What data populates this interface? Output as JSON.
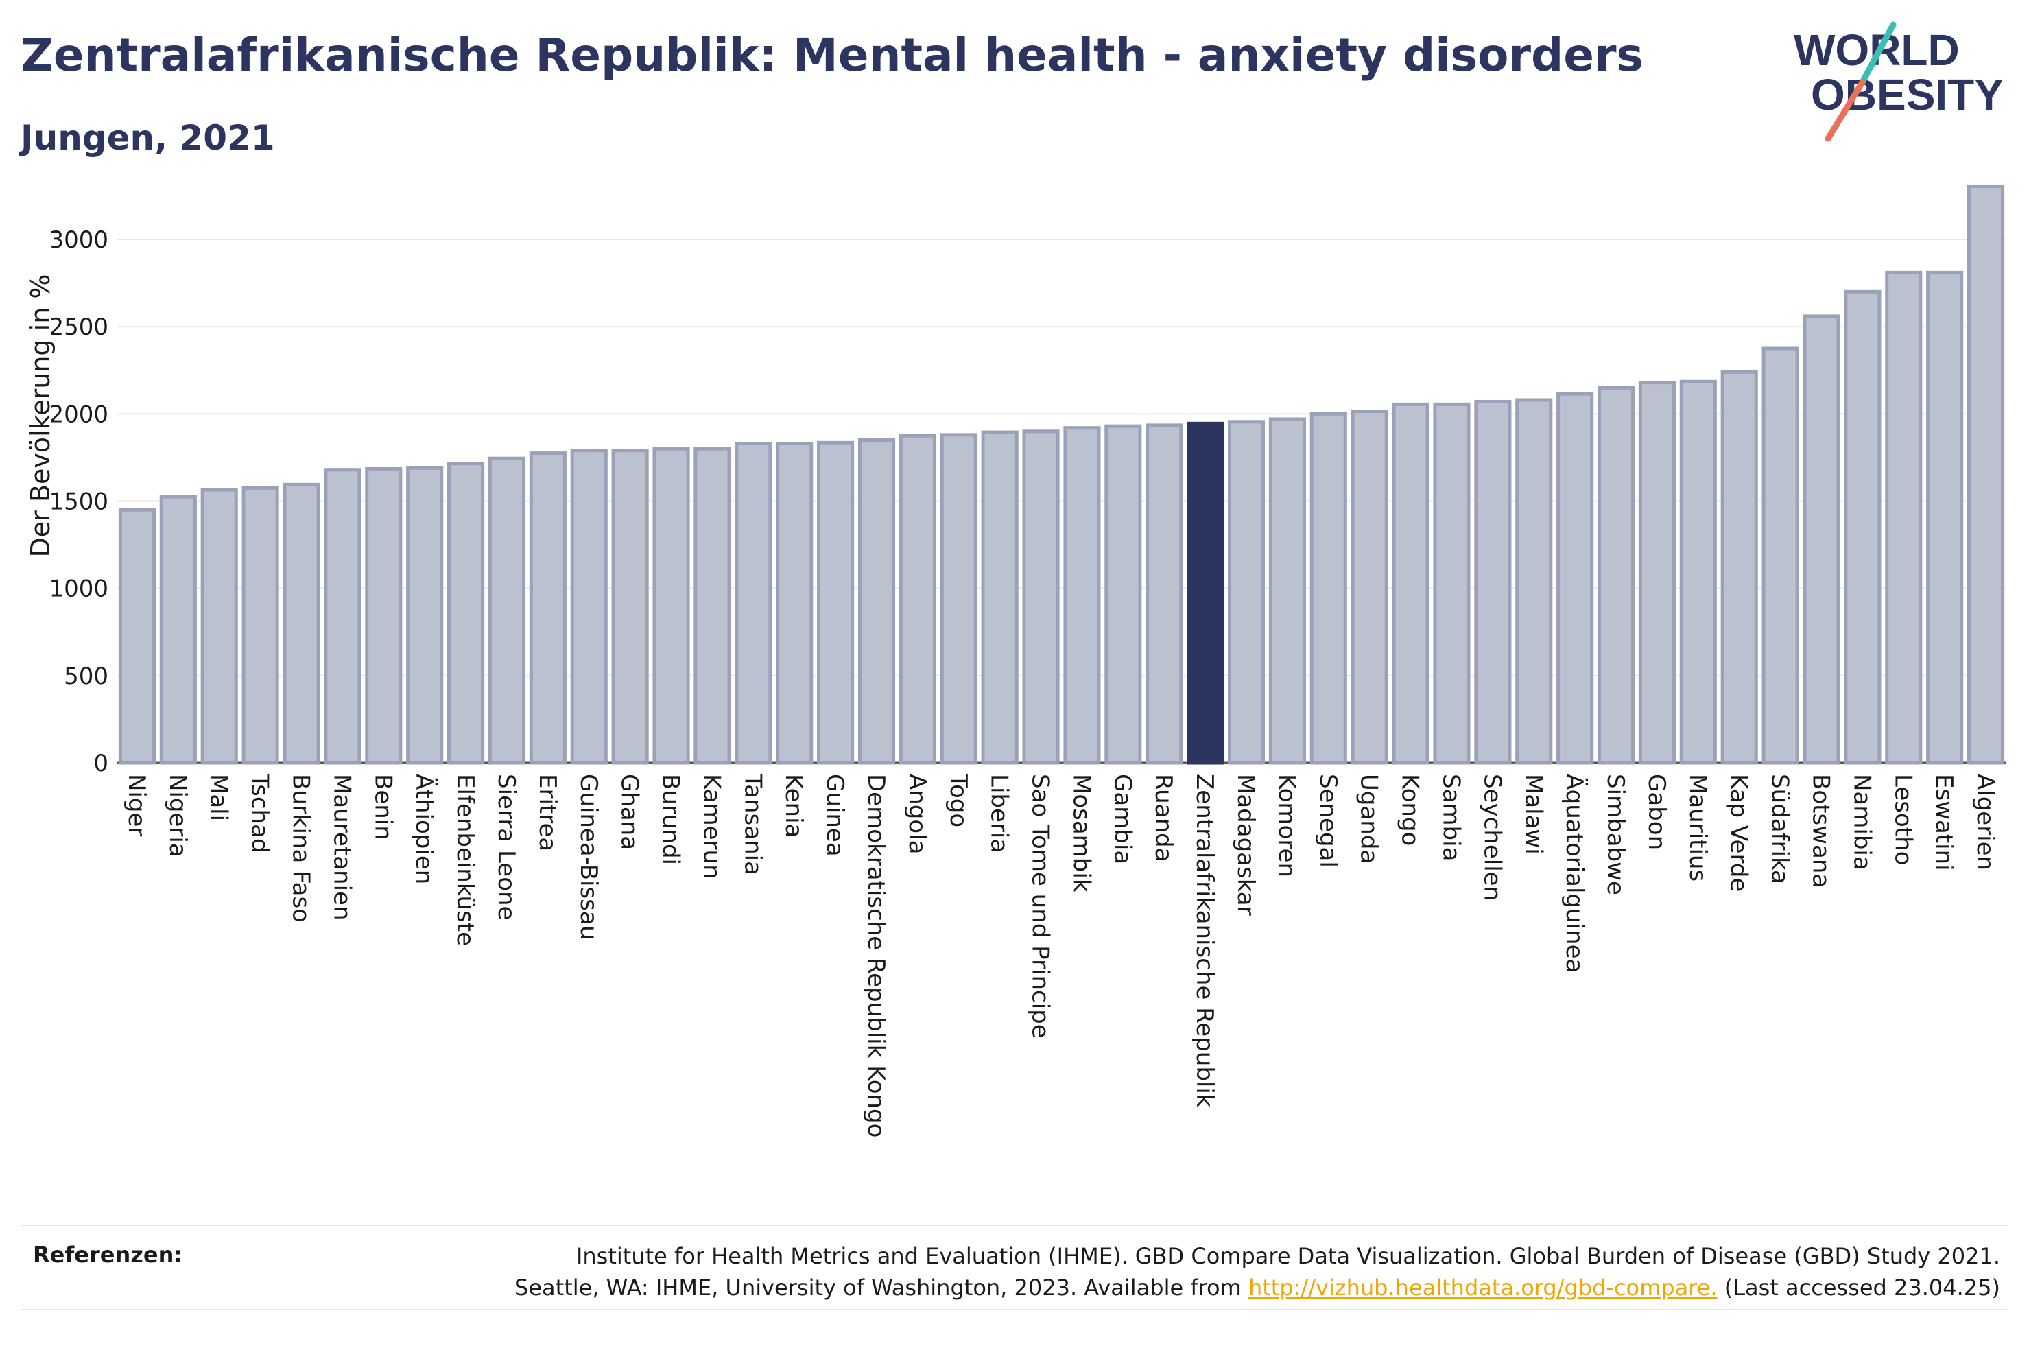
{
  "header": {
    "title": "Zentralafrikanische Republik: Mental health - anxiety disorders",
    "subtitle": "Jungen, 2021"
  },
  "logo": {
    "line1": "WORLD",
    "line2": "OBESITY",
    "text_color": "#2b3560",
    "slash_color_top": "#3bbfb5",
    "slash_color_bottom": "#e8735a"
  },
  "chart_data": {
    "type": "bar",
    "ylabel": "Der Bevölkerung in %",
    "xlabel": "",
    "ylim": [
      0,
      3350
    ],
    "yticks": [
      0,
      500,
      1000,
      1500,
      2000,
      2500,
      3000
    ],
    "grid": true,
    "highlight": "Zentralafrikanische Republik",
    "bar_color": "#bcc1d0",
    "bar_edge_color": "#9aa1b9",
    "highlight_color": "#2b3560",
    "categories": [
      "Niger",
      "Nigeria",
      "Mali",
      "Tschad",
      "Burkina Faso",
      "Mauretanien",
      "Benin",
      "Äthiopien",
      "Elfenbeinküste",
      "Sierra Leone",
      "Eritrea",
      "Guinea-Bissau",
      "Ghana",
      "Burundi",
      "Kamerun",
      "Tansania",
      "Kenia",
      "Guinea",
      "Demokratische Republik Kongo",
      "Angola",
      "Togo",
      "Liberia",
      "Sao Tome und Principe",
      "Mosambik",
      "Gambia",
      "Ruanda",
      "Zentralafrikanische Republik",
      "Madagaskar",
      "Komoren",
      "Senegal",
      "Uganda",
      "Kongo",
      "Sambia",
      "Seychellen",
      "Malawi",
      "Äquatorialguinea",
      "Simbabwe",
      "Gabon",
      "Mauritius",
      "Kap Verde",
      "Südafrika",
      "Botswana",
      "Namibia",
      "Lesotho",
      "Eswatini",
      "Algerien"
    ],
    "values": [
      1450,
      1525,
      1565,
      1575,
      1595,
      1680,
      1685,
      1690,
      1715,
      1745,
      1775,
      1790,
      1790,
      1800,
      1800,
      1830,
      1830,
      1835,
      1850,
      1875,
      1880,
      1895,
      1900,
      1920,
      1930,
      1935,
      1945,
      1955,
      1970,
      2000,
      2015,
      2055,
      2055,
      2070,
      2080,
      2115,
      2150,
      2180,
      2185,
      2240,
      2375,
      2560,
      2700,
      2810,
      2810,
      3305
    ]
  },
  "footer": {
    "label": "Referenzen:",
    "line1": "Institute for Health Metrics and Evaluation (IHME). GBD Compare Data Visualization. Global Burden of Disease (GBD) Study 2021.",
    "line2_prefix": "Seattle, WA: IHME, University of Washington, 2023. Available from ",
    "link": "http://vizhub.healthdata.org/gbd-compare.",
    "line2_suffix": " (Last accessed 23.04.25)"
  }
}
